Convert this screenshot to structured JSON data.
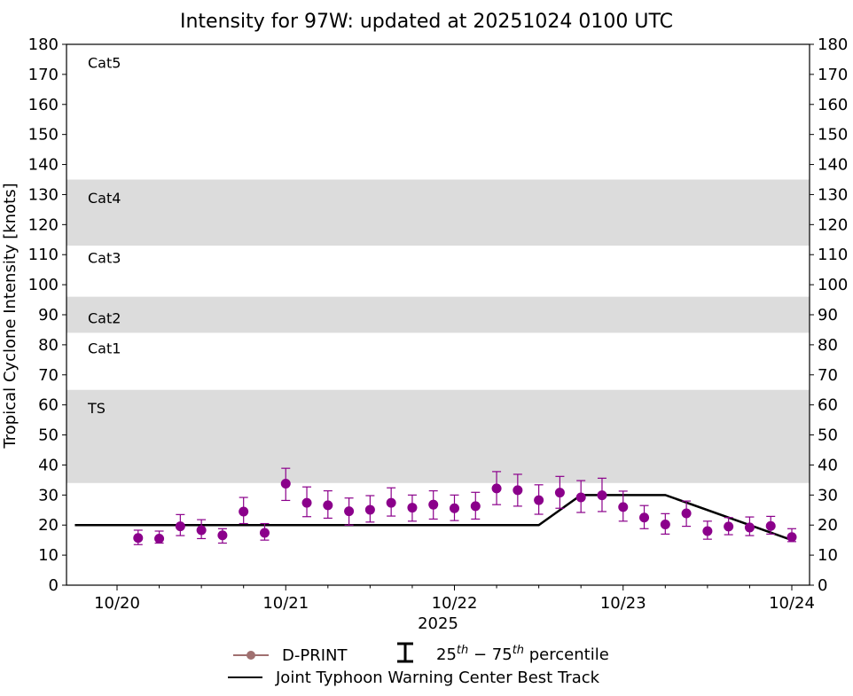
{
  "chart_data": {
    "type": "scatter",
    "title": "Intensity for 97W: updated at 20251024 0100 UTC",
    "ylabel": "Tropical Cyclone Intensity [knots]",
    "xlabel": "2025",
    "ylim": [
      0,
      180
    ],
    "yticks": [
      0,
      10,
      20,
      30,
      40,
      50,
      60,
      70,
      80,
      90,
      100,
      110,
      120,
      130,
      140,
      150,
      160,
      170,
      180
    ],
    "xlim_days": [
      -0.25,
      4.1
    ],
    "xticks": [
      {
        "day": 0,
        "label": "10/20"
      },
      {
        "day": 1,
        "label": "10/21"
      },
      {
        "day": 2,
        "label": "10/22"
      },
      {
        "day": 3,
        "label": "10/23"
      },
      {
        "day": 4,
        "label": "10/24"
      }
    ],
    "minor_xticks_days": [
      0.25,
      0.5,
      0.75,
      1.25,
      1.5,
      1.75,
      2.25,
      2.5,
      2.75,
      3.25,
      3.5,
      3.75
    ],
    "category_bands": [
      {
        "label": "TS",
        "low": 34,
        "high": 65,
        "shaded": true,
        "label_y": 59
      },
      {
        "label": "Cat1",
        "low": 65,
        "high": 84,
        "shaded": false,
        "label_y": 79
      },
      {
        "label": "Cat2",
        "low": 84,
        "high": 96,
        "shaded": true,
        "label_y": 89
      },
      {
        "label": "Cat3",
        "low": 96,
        "high": 113,
        "shaded": false,
        "label_y": 109
      },
      {
        "label": "Cat4",
        "low": 113,
        "high": 135,
        "shaded": true,
        "label_y": 129
      },
      {
        "label": "Cat5",
        "low": 135,
        "high": 180,
        "shaded": false,
        "label_y": 174
      }
    ],
    "band_color": "#dcdcdc",
    "series": [
      {
        "name": "D-PRINT",
        "color": "#8b008b",
        "legend_color": "#a07070",
        "points": [
          {
            "t": 0.125,
            "y": 15.7,
            "lo": 13.5,
            "hi": 18.3
          },
          {
            "t": 0.25,
            "y": 15.5,
            "lo": 14.0,
            "hi": 18.0
          },
          {
            "t": 0.375,
            "y": 19.6,
            "lo": 16.5,
            "hi": 23.5
          },
          {
            "t": 0.5,
            "y": 18.3,
            "lo": 15.5,
            "hi": 21.8
          },
          {
            "t": 0.625,
            "y": 16.6,
            "lo": 14.0,
            "hi": 18.8
          },
          {
            "t": 0.75,
            "y": 24.5,
            "lo": 20.5,
            "hi": 29.2
          },
          {
            "t": 0.875,
            "y": 17.4,
            "lo": 15.0,
            "hi": 20.5
          },
          {
            "t": 1.0,
            "y": 33.8,
            "lo": 28.2,
            "hi": 38.9
          },
          {
            "t": 1.125,
            "y": 27.4,
            "lo": 22.8,
            "hi": 32.7
          },
          {
            "t": 1.25,
            "y": 26.6,
            "lo": 22.3,
            "hi": 31.4
          },
          {
            "t": 1.375,
            "y": 24.6,
            "lo": 20.0,
            "hi": 29.0
          },
          {
            "t": 1.5,
            "y": 25.1,
            "lo": 21.0,
            "hi": 29.8
          },
          {
            "t": 1.625,
            "y": 27.4,
            "lo": 23.0,
            "hi": 32.4
          },
          {
            "t": 1.75,
            "y": 25.8,
            "lo": 21.3,
            "hi": 30.0
          },
          {
            "t": 1.875,
            "y": 26.8,
            "lo": 22.0,
            "hi": 31.4
          },
          {
            "t": 2.0,
            "y": 25.6,
            "lo": 21.5,
            "hi": 30.0
          },
          {
            "t": 2.125,
            "y": 26.3,
            "lo": 22.0,
            "hi": 30.9
          },
          {
            "t": 2.25,
            "y": 32.2,
            "lo": 26.8,
            "hi": 37.8
          },
          {
            "t": 2.375,
            "y": 31.6,
            "lo": 26.3,
            "hi": 36.9
          },
          {
            "t": 2.5,
            "y": 28.3,
            "lo": 23.6,
            "hi": 33.4
          },
          {
            "t": 2.625,
            "y": 30.8,
            "lo": 25.6,
            "hi": 36.2
          },
          {
            "t": 2.75,
            "y": 29.2,
            "lo": 24.2,
            "hi": 34.8
          },
          {
            "t": 2.875,
            "y": 29.9,
            "lo": 24.5,
            "hi": 35.6
          },
          {
            "t": 3.0,
            "y": 26.0,
            "lo": 21.3,
            "hi": 31.3
          },
          {
            "t": 3.125,
            "y": 22.5,
            "lo": 18.8,
            "hi": 26.5
          },
          {
            "t": 3.25,
            "y": 20.2,
            "lo": 17.0,
            "hi": 23.8
          },
          {
            "t": 3.375,
            "y": 23.9,
            "lo": 19.6,
            "hi": 28.0
          },
          {
            "t": 3.5,
            "y": 18.0,
            "lo": 15.3,
            "hi": 21.3
          },
          {
            "t": 3.625,
            "y": 19.5,
            "lo": 16.8,
            "hi": 22.5
          },
          {
            "t": 3.75,
            "y": 19.2,
            "lo": 16.5,
            "hi": 22.7
          },
          {
            "t": 3.875,
            "y": 19.7,
            "lo": 17.0,
            "hi": 22.9
          },
          {
            "t": 4.0,
            "y": 16.0,
            "lo": 14.5,
            "hi": 18.8
          }
        ]
      },
      {
        "name": "Joint Typhoon Warning Center Best Track",
        "color": "#000000",
        "line": [
          {
            "t": -0.25,
            "y": 20
          },
          {
            "t": 2.5,
            "y": 20
          },
          {
            "t": 2.75,
            "y": 30
          },
          {
            "t": 3.25,
            "y": 30
          },
          {
            "t": 4.0,
            "y": 15
          }
        ]
      }
    ],
    "legend": {
      "placement": "bottom-center",
      "dprint_label": "D-PRINT",
      "percentile_label_base": "25",
      "percentile_sup1": "th",
      "percentile_mid": " − 75",
      "percentile_sup2": "th",
      "percentile_tail": " percentile",
      "besttrack_label": "Joint Typhoon Warning Center Best Track"
    }
  }
}
